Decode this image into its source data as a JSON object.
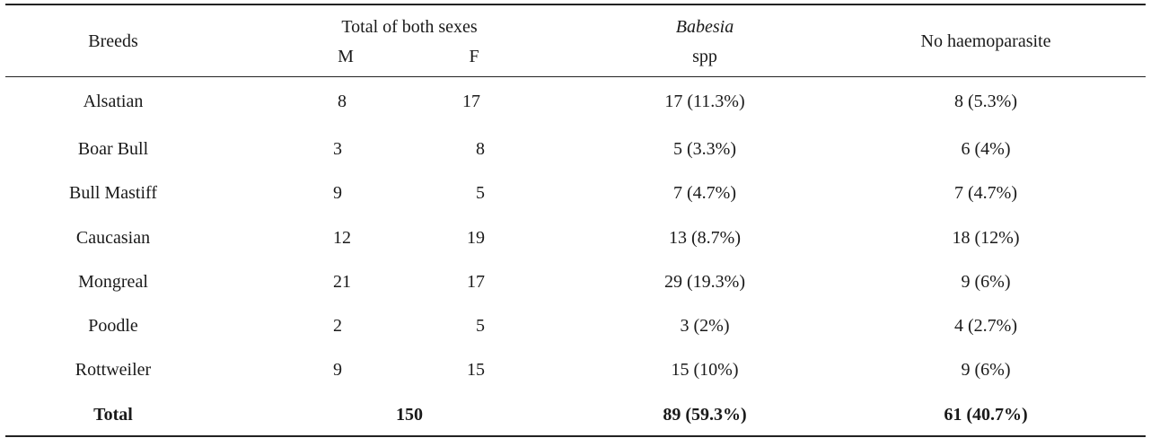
{
  "table": {
    "headers": {
      "breeds": "Breeds",
      "total_both_sexes": "Total of both sexes",
      "m": "M",
      "f": "F",
      "babesia_line1": "Babesia",
      "babesia_line2": "spp",
      "no_haemoparasite": "No haemoparasite"
    },
    "rows": [
      {
        "breed": "Alsatian",
        "m": "8",
        "f": "17",
        "babesia": "17 (11.3%)",
        "none": "8 (5.3%)"
      },
      {
        "breed": "Boar Bull",
        "m": "3",
        "f": "8",
        "babesia": "5 (3.3%)",
        "none": "6 (4%)"
      },
      {
        "breed": "Bull Mastiff",
        "m": "9",
        "f": "5",
        "babesia": "7 (4.7%)",
        "none": "7 (4.7%)"
      },
      {
        "breed": "Caucasian",
        "m": "12",
        "f": "19",
        "babesia": "13 (8.7%)",
        "none": "18 (12%)"
      },
      {
        "breed": "Mongreal",
        "m": "21",
        "f": "17",
        "babesia": "29 (19.3%)",
        "none": "9 (6%)"
      },
      {
        "breed": "Poodle",
        "m": "2",
        "f": "5",
        "babesia": "3 (2%)",
        "none": "4 (2.7%)"
      },
      {
        "breed": "Rottweiler",
        "m": "9",
        "f": "15",
        "babesia": "15 (10%)",
        "none": "9 (6%)"
      }
    ],
    "total": {
      "label": "Total",
      "both_sexes": "150",
      "babesia": "89 (59.3%)",
      "none": "61 (40.7%)"
    }
  }
}
